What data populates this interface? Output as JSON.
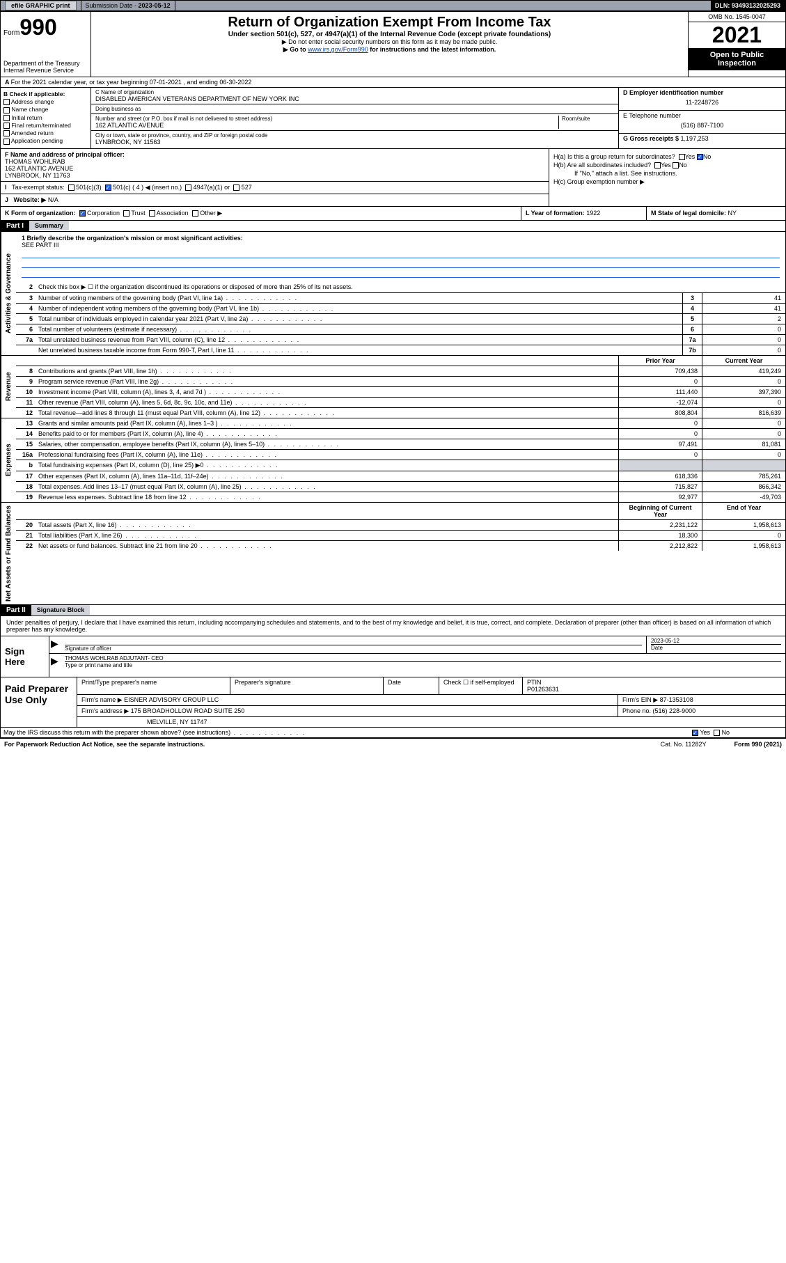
{
  "topbar": {
    "efile": "efile GRAPHIC print",
    "submission_label": "Submission Date - ",
    "submission_date": "2023-05-12",
    "dln_label": "DLN: ",
    "dln": "93493132025293"
  },
  "header": {
    "form_word": "Form",
    "form_num": "990",
    "dept1": "Department of the Treasury",
    "dept2": "Internal Revenue Service",
    "title": "Return of Organization Exempt From Income Tax",
    "subtitle": "Under section 501(c), 527, or 4947(a)(1) of the Internal Revenue Code (except private foundations)",
    "note1": "▶ Do not enter social security numbers on this form as it may be made public.",
    "note2_pre": "▶ Go to ",
    "note2_link": "www.irs.gov/Form990",
    "note2_post": " for instructions and the latest information.",
    "omb": "OMB No. 1545-0047",
    "year": "2021",
    "inspect1": "Open to Public",
    "inspect2": "Inspection"
  },
  "lineA": "For the 2021 calendar year, or tax year beginning 07-01-2021   , and ending 06-30-2022",
  "colB": {
    "hdr": "B Check if applicable:",
    "opts": [
      "Address change",
      "Name change",
      "Initial return",
      "Final return/terminated",
      "Amended return",
      "Application pending"
    ]
  },
  "colC": {
    "name_lbl": "C Name of organization",
    "name": "DISABLED AMERICAN VETERANS DEPARTMENT OF NEW YORK INC",
    "dba_lbl": "Doing business as",
    "addr_lbl": "Number and street (or P.O. box if mail is not delivered to street address)",
    "room_lbl": "Room/suite",
    "addr": "162 ATLANTIC AVENUE",
    "city_lbl": "City or town, state or province, country, and ZIP or foreign postal code",
    "city": "LYNBROOK, NY  11563"
  },
  "colDE": {
    "d_lbl": "D Employer identification number",
    "ein": "11-2248726",
    "e_lbl": "E Telephone number",
    "phone": "(516) 887-7100",
    "g_lbl": "G Gross receipts $ ",
    "gross": "1,197,253"
  },
  "rowF": {
    "lbl": "F  Name and address of principal officer:",
    "name": "THOMAS WOHLRAB",
    "addr": "162 ATLANTIC AVENUE",
    "city": "LYNBROOK, NY  11763"
  },
  "rowI": {
    "lbl": "Tax-exempt status:",
    "o1": "501(c)(3)",
    "o2": "501(c) ( 4 ) ◀ (insert no.)",
    "o3": "4947(a)(1) or",
    "o4": "527"
  },
  "rowJ": {
    "lbl": "Website: ▶",
    "val": "N/A"
  },
  "colH": {
    "a": "H(a)  Is this a group return for subordinates?",
    "b": "H(b)  Are all subordinates included?",
    "bnote": "If \"No,\" attach a list. See instructions.",
    "c": "H(c)  Group exemption number ▶",
    "yes": "Yes",
    "no": "No"
  },
  "rowK": "K Form of organization:",
  "kopts": [
    "Corporation",
    "Trust",
    "Association",
    "Other ▶"
  ],
  "rowL": {
    "lbl": "L Year of formation: ",
    "val": "1922"
  },
  "rowM": {
    "lbl": "M State of legal domicile: ",
    "val": "NY"
  },
  "part1": {
    "hdr": "Part I",
    "title": "Summary"
  },
  "sides": {
    "gov": "Activities & Governance",
    "rev": "Revenue",
    "exp": "Expenses",
    "net": "Net Assets or Fund Balances"
  },
  "mission": {
    "lbl": "1   Briefly describe the organization's mission or most significant activities:",
    "val": "SEE PART III"
  },
  "line2": "Check this box ▶ ☐  if the organization discontinued its operations or disposed of more than 25% of its net assets.",
  "govlines": [
    {
      "n": "3",
      "t": "Number of voting members of the governing body (Part VI, line 1a)",
      "b": "3",
      "v": "41"
    },
    {
      "n": "4",
      "t": "Number of independent voting members of the governing body (Part VI, line 1b)",
      "b": "4",
      "v": "41"
    },
    {
      "n": "5",
      "t": "Total number of individuals employed in calendar year 2021 (Part V, line 2a)",
      "b": "5",
      "v": "2"
    },
    {
      "n": "6",
      "t": "Total number of volunteers (estimate if necessary)",
      "b": "6",
      "v": "0"
    },
    {
      "n": "7a",
      "t": "Total unrelated business revenue from Part VIII, column (C), line 12",
      "b": "7a",
      "v": "0"
    },
    {
      "n": "",
      "t": "Net unrelated business taxable income from Form 990-T, Part I, line 11",
      "b": "7b",
      "v": "0"
    }
  ],
  "colhdrs": {
    "py": "Prior Year",
    "cy": "Current Year"
  },
  "revlines": [
    {
      "n": "8",
      "t": "Contributions and grants (Part VIII, line 1h)",
      "p": "709,438",
      "c": "419,249"
    },
    {
      "n": "9",
      "t": "Program service revenue (Part VIII, line 2g)",
      "p": "0",
      "c": "0"
    },
    {
      "n": "10",
      "t": "Investment income (Part VIII, column (A), lines 3, 4, and 7d )",
      "p": "111,440",
      "c": "397,390"
    },
    {
      "n": "11",
      "t": "Other revenue (Part VIII, column (A), lines 5, 6d, 8c, 9c, 10c, and 11e)",
      "p": "-12,074",
      "c": "0"
    },
    {
      "n": "12",
      "t": "Total revenue—add lines 8 through 11 (must equal Part VIII, column (A), line 12)",
      "p": "808,804",
      "c": "816,639"
    }
  ],
  "explines": [
    {
      "n": "13",
      "t": "Grants and similar amounts paid (Part IX, column (A), lines 1–3 )",
      "p": "0",
      "c": "0"
    },
    {
      "n": "14",
      "t": "Benefits paid to or for members (Part IX, column (A), line 4)",
      "p": "0",
      "c": "0"
    },
    {
      "n": "15",
      "t": "Salaries, other compensation, employee benefits (Part IX, column (A), lines 5–10)",
      "p": "97,491",
      "c": "81,081"
    },
    {
      "n": "16a",
      "t": "Professional fundraising fees (Part IX, column (A), line 11e)",
      "p": "0",
      "c": "0"
    },
    {
      "n": "b",
      "t": "Total fundraising expenses (Part IX, column (D), line 25) ▶0",
      "p": "",
      "c": "",
      "grey": true
    },
    {
      "n": "17",
      "t": "Other expenses (Part IX, column (A), lines 11a–11d, 11f–24e)",
      "p": "618,336",
      "c": "785,261"
    },
    {
      "n": "18",
      "t": "Total expenses. Add lines 13–17 (must equal Part IX, column (A), line 25)",
      "p": "715,827",
      "c": "866,342"
    },
    {
      "n": "19",
      "t": "Revenue less expenses. Subtract line 18 from line 12",
      "p": "92,977",
      "c": "-49,703"
    }
  ],
  "nethdrs": {
    "b": "Beginning of Current Year",
    "e": "End of Year"
  },
  "netlines": [
    {
      "n": "20",
      "t": "Total assets (Part X, line 16)",
      "p": "2,231,122",
      "c": "1,958,613"
    },
    {
      "n": "21",
      "t": "Total liabilities (Part X, line 26)",
      "p": "18,300",
      "c": "0"
    },
    {
      "n": "22",
      "t": "Net assets or fund balances. Subtract line 21 from line 20",
      "p": "2,212,822",
      "c": "1,958,613"
    }
  ],
  "part2": {
    "hdr": "Part II",
    "title": "Signature Block"
  },
  "sigtext": "Under penalties of perjury, I declare that I have examined this return, including accompanying schedules and statements, and to the best of my knowledge and belief, it is true, correct, and complete. Declaration of preparer (other than officer) is based on all information of which preparer has any knowledge.",
  "sign": {
    "here": "Sign Here",
    "sig_lbl": "Signature of officer",
    "date_lbl": "Date",
    "date": "2023-05-12",
    "name": "THOMAS WOHLRAB  ADJUTANT- CEO",
    "name_lbl": "Type or print name and title"
  },
  "prep": {
    "hdr": "Paid Preparer Use Only",
    "r1": {
      "c1": "Print/Type preparer's name",
      "c2": "Preparer's signature",
      "c3": "Date",
      "c4a": "Check ☐ if self-employed",
      "c5a": "PTIN",
      "c5b": "P01263631"
    },
    "r2": {
      "lbl": "Firm's name    ▶",
      "val": "EISNER ADVISORY GROUP LLC",
      "ein_lbl": "Firm's EIN ▶",
      "ein": "87-1353108"
    },
    "r3": {
      "lbl": "Firm's address ▶",
      "val": "175 BROADHOLLOW ROAD SUITE 250",
      "ph_lbl": "Phone no. ",
      "ph": "(516) 228-9000"
    },
    "r4": {
      "city": "MELVILLE, NY  11747"
    }
  },
  "discuss": "May the IRS discuss this return with the preparer shown above? (see instructions)",
  "foot": {
    "l": "For Paperwork Reduction Act Notice, see the separate instructions.",
    "m": "Cat. No. 11282Y",
    "r": "Form 990 (2021)"
  }
}
